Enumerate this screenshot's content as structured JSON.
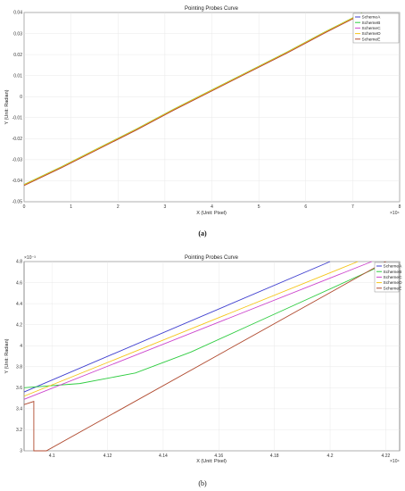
{
  "chart_data": [
    {
      "type": "line",
      "title": "Pointing Probes Curve",
      "xlabel": "X (Unit: Pixel)",
      "ylabel": "Y (Unit: Radian)",
      "x_exponent": "×10⁴",
      "caption": "(a)",
      "xlim": [
        0,
        8
      ],
      "ylim": [
        -0.05,
        0.04
      ],
      "xticks": [
        "0",
        "1",
        "2",
        "3",
        "4",
        "5",
        "6",
        "7",
        "8"
      ],
      "yticks": [
        "-0.05",
        "-0.04",
        "-0.03",
        "-0.02",
        "-0.01",
        "0",
        "0.01",
        "0.02",
        "0.03",
        "0.04"
      ],
      "grid": true,
      "legend_position": "top-right",
      "colors": {
        "SchemeA": "#3f3fcf",
        "SchemeB": "#2ecc40",
        "SchemeC": "#cc44cc",
        "SchemeD": "#f5c518",
        "SchemeE": "#b04a2f"
      },
      "legend_labels": [
        "SchemeA",
        "SchemeB",
        "SchemeC",
        "SchemeD",
        "SchemeE"
      ],
      "series": [
        {
          "name": "SchemeA",
          "x": [
            0,
            0.8,
            1.6,
            2.4,
            3.2,
            4.0,
            4.8,
            5.6,
            6.4,
            7.2
          ],
          "y": [
            -0.042,
            -0.0335,
            -0.0245,
            -0.0155,
            -0.006,
            0.003,
            0.012,
            0.021,
            0.0305,
            0.0395
          ]
        },
        {
          "name": "SchemeB",
          "x": [
            0,
            0.8,
            1.6,
            2.4,
            3.2,
            4.0,
            4.8,
            5.6,
            6.4,
            7.2
          ],
          "y": [
            -0.0418,
            -0.0333,
            -0.0243,
            -0.0153,
            -0.0058,
            0.0032,
            0.0122,
            0.0212,
            0.0307,
            0.0397
          ]
        },
        {
          "name": "SchemeC",
          "x": [
            0,
            0.8,
            1.6,
            2.4,
            3.2,
            4.0,
            4.8,
            5.6,
            6.4,
            7.2
          ],
          "y": [
            -0.0421,
            -0.0336,
            -0.0246,
            -0.0156,
            -0.0061,
            0.0029,
            0.0119,
            0.0209,
            0.0304,
            0.0394
          ]
        },
        {
          "name": "SchemeD",
          "x": [
            0,
            0.8,
            1.6,
            2.4,
            3.2,
            4.0,
            4.8,
            5.6,
            6.4,
            7.2
          ],
          "y": [
            -0.0419,
            -0.0334,
            -0.0244,
            -0.0154,
            -0.0059,
            0.0031,
            0.0121,
            0.0211,
            0.0306,
            0.0396
          ]
        },
        {
          "name": "SchemeE",
          "x": [
            0,
            0.8,
            1.6,
            2.4,
            3.2,
            4.0,
            4.8,
            5.6,
            6.4,
            7.2
          ],
          "y": [
            -0.0423,
            -0.0338,
            -0.0248,
            -0.0158,
            -0.0063,
            0.0027,
            0.0117,
            0.0207,
            0.0302,
            0.0392
          ]
        }
      ]
    },
    {
      "type": "line",
      "title": "Pointing Probes Curve",
      "xlabel": "X (Unit: Pixel)",
      "ylabel": "Y (Unit: Radian)",
      "x_exponent": "×10⁴",
      "y_exponent": "×10⁻³",
      "caption": "(b)",
      "xlim": [
        4.09,
        4.225
      ],
      "ylim": [
        3.0,
        4.8
      ],
      "xticks": [
        "4.1",
        "4.12",
        "4.14",
        "4.16",
        "4.18",
        "4.2",
        "4.22"
      ],
      "yticks": [
        "3",
        "3.2",
        "3.4",
        "3.6",
        "3.8",
        "4",
        "4.2",
        "4.4",
        "4.6",
        "4.8"
      ],
      "grid": true,
      "legend_position": "top-right",
      "colors": {
        "SchemeA": "#3f3fcf",
        "SchemeB": "#2ecc40",
        "SchemeC": "#cc44cc",
        "SchemeD": "#f5c518",
        "SchemeE": "#b04a2f"
      },
      "legend_labels": [
        "SchemeA",
        "SchemeB",
        "SchemeC",
        "SchemeD",
        "SchemeE"
      ],
      "series": [
        {
          "name": "SchemeA",
          "x": [
            4.09,
            4.2
          ],
          "y": [
            3.56,
            4.8
          ]
        },
        {
          "name": "SchemeB",
          "x": [
            4.09,
            4.11,
            4.13,
            4.15,
            4.17,
            4.19,
            4.21,
            4.22
          ],
          "y": [
            3.6,
            3.64,
            3.74,
            3.94,
            4.18,
            4.42,
            4.66,
            4.78
          ]
        },
        {
          "name": "SchemeC",
          "x": [
            4.09,
            4.215
          ],
          "y": [
            3.49,
            4.8
          ]
        },
        {
          "name": "SchemeD",
          "x": [
            4.09,
            4.21
          ],
          "y": [
            3.52,
            4.8
          ]
        },
        {
          "name": "SchemeE",
          "x": [
            4.09,
            4.0935,
            4.0935,
            4.0935,
            4.0935,
            4.098,
            4.22
          ],
          "y": [
            3.44,
            3.47,
            3.47,
            3.0,
            3.0,
            3.0,
            4.8
          ]
        }
      ]
    }
  ]
}
